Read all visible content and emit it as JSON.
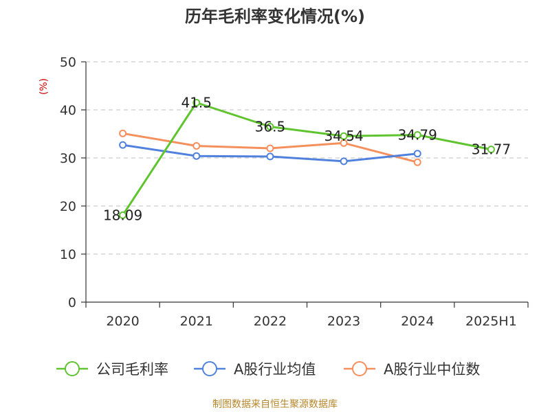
{
  "title": "历年毛利率变化情况(%)",
  "footer": "制图数据来自恒生聚源数据库",
  "chart_data": {
    "type": "line",
    "title": "历年毛利率变化情况(%)",
    "ylabel": "(%)",
    "xlabel": "",
    "ylim": [
      0,
      50
    ],
    "yticks": [
      0,
      10,
      20,
      30,
      40,
      50
    ],
    "grid": true,
    "legend_position": "bottom",
    "categories": [
      "2020",
      "2021",
      "2022",
      "2023",
      "2024",
      "2025H1"
    ],
    "series": [
      {
        "name": "公司毛利率",
        "color": "#5fc42f",
        "values": [
          18.09,
          41.5,
          36.5,
          34.54,
          34.79,
          31.77
        ],
        "labels": [
          "18.09",
          "41.5",
          "36.5",
          "34.54",
          "34.79",
          "31.77"
        ]
      },
      {
        "name": "A股行业均值",
        "color": "#4f81dd",
        "values": [
          32.7,
          30.4,
          30.3,
          29.3,
          30.9,
          null
        ]
      },
      {
        "name": "A股行业中位数",
        "color": "#f5905d",
        "values": [
          35.1,
          32.5,
          32.0,
          33.1,
          29.1,
          null
        ]
      }
    ]
  }
}
